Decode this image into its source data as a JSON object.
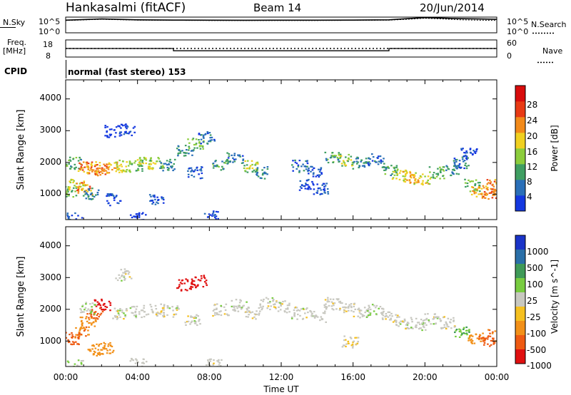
{
  "header": {
    "station": "Hankasalmi (fitACF)",
    "beam": "Beam 14",
    "date": "20/Jun/2014"
  },
  "top_panels": {
    "nsky_label": "N.Sky",
    "nsky_ticks": [
      "10^5",
      "10^0"
    ],
    "nsearch_label": "N.Search",
    "nsearch_ticks": [
      "10^5",
      "10^0"
    ],
    "freq_label_line1": "Freq.",
    "freq_label_line2": "[MHz]",
    "freq_ticks": [
      "18",
      "8"
    ],
    "nave_label": "Nave",
    "nave_ticks": [
      "60",
      "0"
    ],
    "cpid_label": "CPID",
    "cpid_text": "normal (fast stereo) 153"
  },
  "axes": {
    "xlabel": "Time UT",
    "x_ticks": [
      "00:00",
      "04:00",
      "08:00",
      "12:00",
      "16:00",
      "20:00",
      "00:00"
    ],
    "ylabel": "Slant Range [km]",
    "y_ticks": [
      "1000",
      "2000",
      "3000",
      "4000"
    ]
  },
  "power_scale": {
    "label": "Power [dB]",
    "ticks": [
      "4",
      "8",
      "12",
      "16",
      "20",
      "24",
      "28"
    ],
    "colors": [
      "#1438e0",
      "#2a6fb8",
      "#3f9e62",
      "#8ccd3c",
      "#f0d020",
      "#f28a1a",
      "#e83a14",
      "#d80c0c"
    ]
  },
  "velocity_scale": {
    "label": "Velocity [m s^-1]",
    "ticks": [
      "1000",
      "500",
      "100",
      "25",
      "-25",
      "-100",
      "-500",
      "-1000"
    ],
    "colors": [
      "#1a34c8",
      "#2a6fa8",
      "#3f9a58",
      "#78cc40",
      "#c8c8c0",
      "#f5c020",
      "#f29018",
      "#ee5a12",
      "#e01010"
    ]
  },
  "chart_data": [
    {
      "type": "line",
      "title": "N.Sky / N.Search",
      "x": [
        0,
        2,
        4,
        6,
        8,
        10,
        12,
        14,
        16,
        18,
        19,
        20,
        21,
        22,
        23,
        24
      ],
      "series": [
        {
          "name": "N.Sky",
          "values": [
            15000.0,
            40000.0,
            20000.0,
            16000.0,
            15000.0,
            14000.0,
            15000.0,
            15000.0,
            16000.0,
            20000.0,
            50000.0,
            120000.0,
            80000.0,
            50000.0,
            40000.0,
            30000.0
          ]
        },
        {
          "name": "N.Search",
          "values": [
            12000.0,
            30000.0,
            16000.0,
            13000.0,
            12000.0,
            11000.0,
            12000.0,
            12000.0,
            13000.0,
            16000.0,
            30000.0,
            70000.0,
            40000.0,
            20000.0,
            15000.0,
            12000.0
          ]
        }
      ],
      "ylim": [
        1,
        100000
      ],
      "xlim": [
        0,
        24
      ]
    },
    {
      "type": "line",
      "title": "Freq / Nave",
      "x": [
        0,
        6,
        6,
        18,
        18,
        24
      ],
      "series": [
        {
          "name": "Freq.",
          "values": [
            13,
            13,
            13,
            13,
            13,
            13
          ]
        },
        {
          "name": "Nave",
          "values": [
            30,
            30,
            22,
            22,
            30,
            30
          ]
        }
      ],
      "ylim_freq": [
        8,
        18
      ],
      "ylim_nave": [
        0,
        60
      ],
      "xlim": [
        0,
        24
      ]
    },
    {
      "type": "heatmap",
      "title": "Power [dB]",
      "x_unit": "hours UT",
      "y_unit": "slant range km",
      "xlim": [
        0,
        24
      ],
      "ylim": [
        200,
        4600
      ],
      "cells": [
        [
          0.2,
          1100,
          16
        ],
        [
          0.6,
          1300,
          20
        ],
        [
          1.0,
          1200,
          26
        ],
        [
          1.4,
          1050,
          12
        ],
        [
          0.4,
          2000,
          14
        ],
        [
          1.0,
          1850,
          26
        ],
        [
          1.6,
          1850,
          24
        ],
        [
          2.0,
          1800,
          28
        ],
        [
          2.6,
          1850,
          24
        ],
        [
          3.2,
          1900,
          20
        ],
        [
          3.8,
          1900,
          16
        ],
        [
          4.4,
          2000,
          20
        ],
        [
          5.0,
          2000,
          18
        ],
        [
          5.6,
          1950,
          12
        ],
        [
          2.6,
          3000,
          4
        ],
        [
          3.4,
          3050,
          6
        ],
        [
          6.6,
          2400,
          12
        ],
        [
          7.2,
          2600,
          16
        ],
        [
          7.8,
          2800,
          10
        ],
        [
          7.2,
          1700,
          8
        ],
        [
          8.6,
          1950,
          14
        ],
        [
          9.4,
          2150,
          10
        ],
        [
          10.2,
          1900,
          18
        ],
        [
          10.8,
          1700,
          12
        ],
        [
          13.0,
          1900,
          10
        ],
        [
          13.8,
          1750,
          8
        ],
        [
          13.4,
          1300,
          6
        ],
        [
          14.2,
          1200,
          8
        ],
        [
          14.8,
          2200,
          14
        ],
        [
          15.6,
          2100,
          18
        ],
        [
          16.4,
          2000,
          12
        ],
        [
          17.2,
          2100,
          10
        ],
        [
          18.0,
          1800,
          14
        ],
        [
          18.6,
          1600,
          20
        ],
        [
          19.2,
          1550,
          24
        ],
        [
          19.8,
          1500,
          22
        ],
        [
          20.6,
          1700,
          16
        ],
        [
          21.4,
          1800,
          12
        ],
        [
          22.0,
          2000,
          10
        ],
        [
          22.6,
          1300,
          16
        ],
        [
          23.0,
          1100,
          24
        ],
        [
          23.6,
          1050,
          28
        ],
        [
          23.8,
          1300,
          26
        ],
        [
          22.4,
          2300,
          6
        ],
        [
          5.0,
          850,
          8
        ],
        [
          2.6,
          850,
          6
        ],
        [
          0.5,
          250,
          6
        ],
        [
          4.0,
          250,
          4
        ],
        [
          8.0,
          300,
          6
        ]
      ]
    },
    {
      "type": "heatmap",
      "title": "Velocity [m s^-1]",
      "x_unit": "hours UT",
      "y_unit": "slant range km",
      "xlim": [
        0,
        24
      ],
      "ylim": [
        200,
        4600
      ],
      "cells": [
        [
          0.3,
          1100,
          -500
        ],
        [
          0.8,
          1300,
          -300
        ],
        [
          1.2,
          1600,
          -200
        ],
        [
          1.6,
          1900,
          -600
        ],
        [
          2.0,
          2150,
          -800
        ],
        [
          1.6,
          750,
          -120
        ],
        [
          2.2,
          800,
          -100
        ],
        [
          1.2,
          2050,
          10
        ],
        [
          3.0,
          1900,
          0
        ],
        [
          4.0,
          1950,
          5
        ],
        [
          5.0,
          2000,
          -10
        ],
        [
          5.8,
          1950,
          0
        ],
        [
          6.6,
          2800,
          -800
        ],
        [
          7.4,
          2900,
          -900
        ],
        [
          7.0,
          1700,
          0
        ],
        [
          8.6,
          2000,
          0
        ],
        [
          9.6,
          2150,
          5
        ],
        [
          10.4,
          1900,
          -5
        ],
        [
          11.2,
          2200,
          0
        ],
        [
          12.0,
          2100,
          0
        ],
        [
          13.0,
          1900,
          0
        ],
        [
          14.0,
          1800,
          5
        ],
        [
          14.8,
          2200,
          0
        ],
        [
          15.6,
          2100,
          -5
        ],
        [
          16.4,
          1950,
          0
        ],
        [
          17.2,
          2000,
          10
        ],
        [
          18.0,
          1750,
          0
        ],
        [
          18.8,
          1600,
          0
        ],
        [
          19.6,
          1550,
          5
        ],
        [
          20.4,
          1700,
          0
        ],
        [
          21.2,
          1600,
          0
        ],
        [
          22.0,
          1300,
          60
        ],
        [
          22.8,
          1100,
          -150
        ],
        [
          23.4,
          1000,
          -400
        ],
        [
          23.8,
          1200,
          -300
        ],
        [
          3.2,
          3100,
          0
        ],
        [
          15.8,
          1000,
          -20
        ],
        [
          0.5,
          250,
          30
        ],
        [
          4.0,
          300,
          0
        ],
        [
          8.2,
          300,
          0
        ]
      ]
    }
  ]
}
